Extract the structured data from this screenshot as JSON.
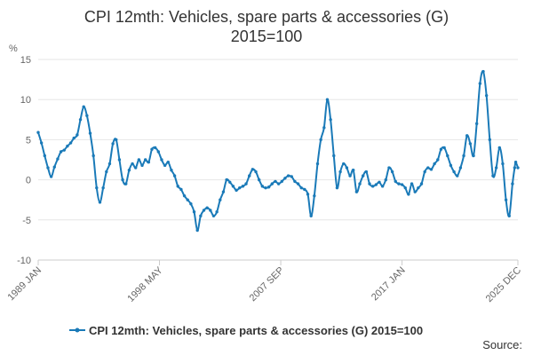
{
  "chart_data": {
    "type": "line",
    "title_line1": "CPI 12mth: Vehicles, spare parts & accessories (G)",
    "title_line2": "2015=100",
    "ylabel": "%",
    "ylim": [
      -10,
      15
    ],
    "yticks": [
      "15",
      "10",
      "5",
      "0",
      "-5",
      "-10"
    ],
    "x_range": [
      "1989-01",
      "2025-12"
    ],
    "xticks": [
      {
        "label": "1989 JAN",
        "date": "1989-01"
      },
      {
        "label": "1998 MAY",
        "date": "1998-05"
      },
      {
        "label": "2007 SEP",
        "date": "2007-09"
      },
      {
        "label": "2017 JAN",
        "date": "2017-01"
      },
      {
        "label": "2025 DEC",
        "date": "2025-12"
      }
    ],
    "grid": "horizontal",
    "legend_position": "bottom",
    "series": [
      {
        "name": "CPI 12mth: Vehicles, spare parts & accessories (G) 2015=100",
        "color": "#1a7ab8",
        "points": [
          [
            "1989-01",
            5.9
          ],
          [
            "1989-04",
            4.6
          ],
          [
            "1989-07",
            3.0
          ],
          [
            "1989-10",
            1.5
          ],
          [
            "1990-01",
            0.4
          ],
          [
            "1990-04",
            1.6
          ],
          [
            "1990-07",
            2.6
          ],
          [
            "1990-10",
            3.5
          ],
          [
            "1991-01",
            3.7
          ],
          [
            "1991-04",
            4.2
          ],
          [
            "1991-07",
            4.6
          ],
          [
            "1991-10",
            5.2
          ],
          [
            "1992-01",
            5.6
          ],
          [
            "1992-04",
            7.5
          ],
          [
            "1992-07",
            9.1
          ],
          [
            "1992-10",
            8.0
          ],
          [
            "1993-01",
            5.8
          ],
          [
            "1993-04",
            3.0
          ],
          [
            "1993-07",
            -1.0
          ],
          [
            "1993-10",
            -2.8
          ],
          [
            "1994-01",
            -1.0
          ],
          [
            "1994-04",
            1.0
          ],
          [
            "1994-07",
            2.0
          ],
          [
            "1994-10",
            4.5
          ],
          [
            "1995-01",
            5.0
          ],
          [
            "1995-04",
            2.5
          ],
          [
            "1995-07",
            0.0
          ],
          [
            "1995-10",
            -0.5
          ],
          [
            "1996-01",
            1.2
          ],
          [
            "1996-04",
            2.0
          ],
          [
            "1996-07",
            1.5
          ],
          [
            "1996-10",
            2.5
          ],
          [
            "1997-01",
            1.8
          ],
          [
            "1997-04",
            2.5
          ],
          [
            "1997-07",
            2.2
          ],
          [
            "1997-10",
            3.8
          ],
          [
            "1998-01",
            4.0
          ],
          [
            "1998-04",
            3.5
          ],
          [
            "1998-07",
            2.5
          ],
          [
            "1998-10",
            1.8
          ],
          [
            "1999-01",
            2.2
          ],
          [
            "1999-04",
            1.2
          ],
          [
            "1999-07",
            0.5
          ],
          [
            "1999-10",
            -0.8
          ],
          [
            "2000-01",
            -1.2
          ],
          [
            "2000-04",
            -2.0
          ],
          [
            "2000-07",
            -2.5
          ],
          [
            "2000-10",
            -3.0
          ],
          [
            "2001-01",
            -4.0
          ],
          [
            "2001-04",
            -6.3
          ],
          [
            "2001-07",
            -4.5
          ],
          [
            "2001-10",
            -3.8
          ],
          [
            "2002-01",
            -3.5
          ],
          [
            "2002-04",
            -3.8
          ],
          [
            "2002-07",
            -4.5
          ],
          [
            "2002-10",
            -4.0
          ],
          [
            "2003-01",
            -2.5
          ],
          [
            "2003-04",
            -1.5
          ],
          [
            "2003-07",
            0.0
          ],
          [
            "2003-10",
            -0.3
          ],
          [
            "2004-01",
            -0.8
          ],
          [
            "2004-04",
            -1.3
          ],
          [
            "2004-07",
            -1.0
          ],
          [
            "2004-10",
            -0.8
          ],
          [
            "2005-01",
            -0.5
          ],
          [
            "2005-04",
            0.5
          ],
          [
            "2005-07",
            1.3
          ],
          [
            "2005-10",
            1.0
          ],
          [
            "2006-01",
            0.0
          ],
          [
            "2006-04",
            -0.8
          ],
          [
            "2006-07",
            -1.0
          ],
          [
            "2006-10",
            -0.9
          ],
          [
            "2007-01",
            -0.5
          ],
          [
            "2007-04",
            -0.2
          ],
          [
            "2007-07",
            -0.5
          ],
          [
            "2007-10",
            -0.2
          ],
          [
            "2008-01",
            0.2
          ],
          [
            "2008-04",
            0.5
          ],
          [
            "2008-07",
            0.4
          ],
          [
            "2008-10",
            -0.2
          ],
          [
            "2009-01",
            -0.5
          ],
          [
            "2009-04",
            -1.0
          ],
          [
            "2009-07",
            -1.2
          ],
          [
            "2009-10",
            -1.8
          ],
          [
            "2010-01",
            -4.5
          ],
          [
            "2010-04",
            -2.0
          ],
          [
            "2010-07",
            2.0
          ],
          [
            "2010-10",
            5.0
          ],
          [
            "2011-01",
            6.5
          ],
          [
            "2011-04",
            10.0
          ],
          [
            "2011-07",
            7.5
          ],
          [
            "2011-10",
            3.0
          ],
          [
            "2012-01",
            -1.0
          ],
          [
            "2012-04",
            1.0
          ],
          [
            "2012-07",
            2.0
          ],
          [
            "2012-10",
            1.5
          ],
          [
            "2013-01",
            0.5
          ],
          [
            "2013-04",
            1.2
          ],
          [
            "2013-07",
            -1.5
          ],
          [
            "2013-10",
            -0.5
          ],
          [
            "2014-01",
            0.5
          ],
          [
            "2014-04",
            1.0
          ],
          [
            "2014-07",
            -0.5
          ],
          [
            "2014-10",
            -0.8
          ],
          [
            "2015-01",
            -0.6
          ],
          [
            "2015-04",
            -0.3
          ],
          [
            "2015-07",
            -0.8
          ],
          [
            "2015-10",
            0.0
          ],
          [
            "2016-01",
            1.5
          ],
          [
            "2016-04",
            1.0
          ],
          [
            "2016-07",
            -0.2
          ],
          [
            "2016-10",
            -0.5
          ],
          [
            "2017-01",
            -0.6
          ],
          [
            "2017-04",
            -1.0
          ],
          [
            "2017-07",
            -1.8
          ],
          [
            "2017-10",
            -0.5
          ],
          [
            "2018-01",
            -1.5
          ],
          [
            "2018-04",
            -1.0
          ],
          [
            "2018-07",
            -0.5
          ],
          [
            "2018-10",
            1.0
          ],
          [
            "2019-01",
            1.5
          ],
          [
            "2019-04",
            1.3
          ],
          [
            "2019-07",
            2.0
          ],
          [
            "2019-10",
            2.5
          ],
          [
            "2020-01",
            3.8
          ],
          [
            "2020-04",
            4.0
          ],
          [
            "2020-07",
            3.0
          ],
          [
            "2020-10",
            1.8
          ],
          [
            "2021-01",
            1.0
          ],
          [
            "2021-04",
            0.5
          ],
          [
            "2021-07",
            1.5
          ],
          [
            "2021-10",
            3.0
          ],
          [
            "2022-01",
            5.5
          ],
          [
            "2022-04",
            4.5
          ],
          [
            "2022-07",
            3.0
          ],
          [
            "2022-10",
            7.0
          ],
          [
            "2023-01",
            12.0
          ],
          [
            "2023-04",
            13.5
          ],
          [
            "2023-07",
            10.5
          ],
          [
            "2023-10",
            5.0
          ],
          [
            "2024-01",
            0.5
          ],
          [
            "2024-04",
            1.5
          ],
          [
            "2024-07",
            4.0
          ],
          [
            "2024-10",
            2.0
          ],
          [
            "2025-01",
            -2.5
          ],
          [
            "2025-04",
            -4.5
          ],
          [
            "2025-07",
            -0.5
          ],
          [
            "2025-09",
            1.5
          ],
          [
            "2025-10",
            2.2
          ],
          [
            "2025-12",
            1.5
          ]
        ]
      }
    ]
  },
  "footer": {
    "source_label": "Source:"
  }
}
